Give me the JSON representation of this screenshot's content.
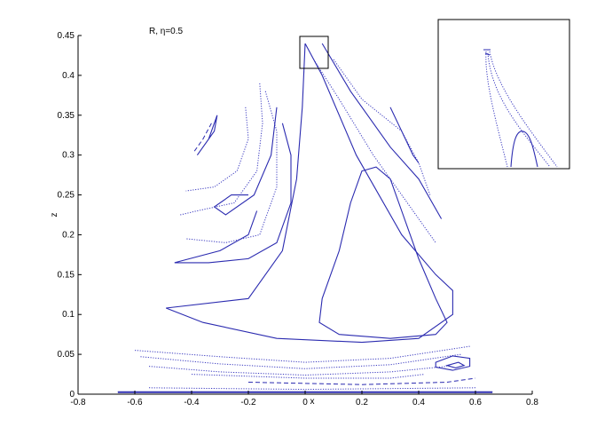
{
  "chart_data": {
    "type": "scatter",
    "title": "",
    "annotation": "R,   η=0.5",
    "xlabel": "x",
    "ylabel": "z",
    "xlim": [
      -0.8,
      0.8
    ],
    "ylim": [
      0,
      0.45
    ],
    "xticks": [
      "-0.8",
      "-0.6",
      "-0.4",
      "-0.2",
      "0",
      "0.2",
      "0.4",
      "0.6",
      "0.8"
    ],
    "yticks": [
      "0",
      "0.05",
      "0.1",
      "0.15",
      "0.2",
      "0.25",
      "0.3",
      "0.35",
      "0.4",
      "0.45"
    ],
    "grid": false,
    "legend": "none",
    "colors": {
      "curve": "#2b2bb0",
      "axis": "#000000"
    },
    "inset": {
      "placement": "top-right",
      "zoom_region_x": [
        -0.02,
        0.06
      ],
      "zoom_region_z": [
        0.41,
        0.45
      ]
    }
  }
}
